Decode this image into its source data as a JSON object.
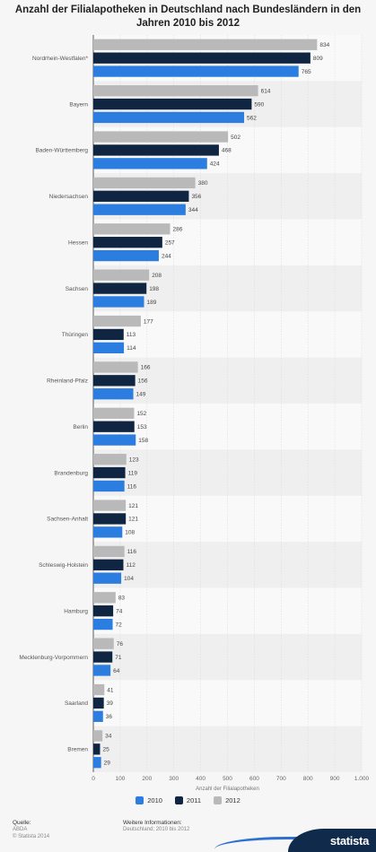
{
  "chart_data": {
    "type": "bar",
    "orientation": "horizontal",
    "title": "Anzahl der Filialapotheken in Deutschland nach Bundesländern in den Jahren 2010 bis 2012",
    "xlabel": "Anzahl der Filialapotheken",
    "ylabel": "",
    "xlim": [
      0,
      1000
    ],
    "x_ticks": [
      "0",
      "100",
      "200",
      "300",
      "400",
      "500",
      "600",
      "700",
      "800",
      "900",
      "1.000"
    ],
    "grid": true,
    "legend_position": "bottom",
    "categories": [
      "Nordrhein-Westfalen*",
      "Bayern",
      "Baden-Württemberg",
      "Niedersachsen",
      "Hessen",
      "Sachsen",
      "Thüringen",
      "Rheinland-Pfalz",
      "Berlin",
      "Brandenburg",
      "Sachsen-Anhalt",
      "Schleswig-Holstein",
      "Hamburg",
      "Mecklenburg-Vorpommern",
      "Saarland",
      "Bremen"
    ],
    "series": [
      {
        "name": "2012",
        "color": "#b9b9b9",
        "values": [
          834,
          614,
          502,
          380,
          286,
          208,
          177,
          166,
          152,
          123,
          121,
          116,
          83,
          76,
          41,
          34
        ]
      },
      {
        "name": "2011",
        "color": "#0f2541",
        "values": [
          809,
          590,
          468,
          356,
          257,
          198,
          113,
          156,
          153,
          119,
          121,
          112,
          74,
          71,
          39,
          25
        ]
      },
      {
        "name": "2010",
        "color": "#2b7de0",
        "values": [
          765,
          562,
          424,
          344,
          244,
          189,
          114,
          149,
          158,
          116,
          108,
          104,
          72,
          64,
          36,
          29
        ]
      }
    ]
  },
  "legend": {
    "items": [
      {
        "label": "2010",
        "color": "#2b7de0"
      },
      {
        "label": "2011",
        "color": "#0f2541"
      },
      {
        "label": "2012",
        "color": "#b9b9b9"
      }
    ]
  },
  "footer": {
    "source_heading": "Quelle:",
    "source_lines": [
      "ABDA",
      "© Statista 2014"
    ],
    "info_heading": "Weitere Informationen:",
    "info_lines": [
      "Deutschland; 2010 bis 2012"
    ],
    "brand": "statista"
  }
}
